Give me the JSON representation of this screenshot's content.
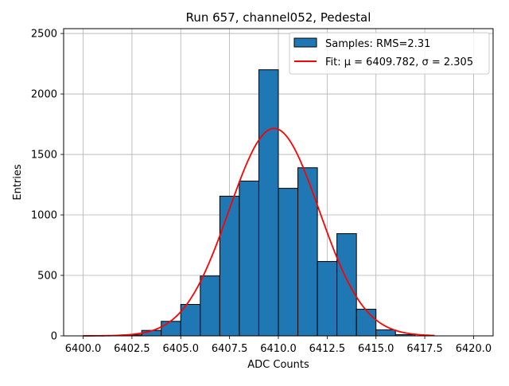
{
  "chart_data": {
    "type": "bar",
    "title": "Run 657, channel052, Pedestal",
    "xlabel": "ADC Counts",
    "ylabel": "Entries",
    "xlim": [
      6399.0,
      6421.0
    ],
    "ylim": [
      0,
      2540
    ],
    "xticks": [
      6400.0,
      6402.5,
      6405.0,
      6407.5,
      6410.0,
      6412.5,
      6415.0,
      6417.5,
      6420.0
    ],
    "xtick_labels": [
      "6400.0",
      "6402.5",
      "6405.0",
      "6407.5",
      "6410.0",
      "6412.5",
      "6415.0",
      "6417.5",
      "6420.0"
    ],
    "yticks": [
      0,
      500,
      1000,
      1500,
      2000,
      2500
    ],
    "ytick_labels": [
      "0",
      "500",
      "1000",
      "1500",
      "2000",
      "2500"
    ],
    "grid": true,
    "legend_position": "top-right",
    "series": [
      {
        "name": "Samples: RMS=2.31",
        "kind": "histogram",
        "color": "#1f77b4",
        "edgecolor": "#000000",
        "bin_edges": [
          6402,
          6403,
          6404,
          6405,
          6406,
          6407,
          6408,
          6409,
          6410,
          6411,
          6412,
          6413,
          6414,
          6415,
          6416,
          6417
        ],
        "counts": [
          8,
          45,
          120,
          260,
          495,
          1155,
          1280,
          2200,
          1220,
          1390,
          615,
          845,
          220,
          50,
          10
        ]
      },
      {
        "name": "Fit: μ = 6409.782, σ = 2.305",
        "kind": "gaussian-fit",
        "color": "#ff0000",
        "mu": 6409.782,
        "sigma": 2.305,
        "amplitude": 1715,
        "x_range": [
          6400,
          6418
        ]
      }
    ]
  }
}
